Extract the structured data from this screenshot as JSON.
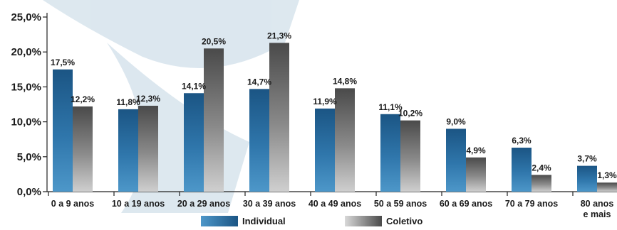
{
  "chart_data": {
    "type": "bar",
    "categories": [
      [
        "0 a 9 anos"
      ],
      [
        "10 a 19 anos"
      ],
      [
        "20 a 29 anos"
      ],
      [
        "30 a 39 anos"
      ],
      [
        "40 a 49 anos"
      ],
      [
        "50 a 59 anos"
      ],
      [
        "60 a 69 anos"
      ],
      [
        "70 a 79 anos"
      ],
      [
        "80 anos",
        "e mais"
      ]
    ],
    "series": [
      {
        "name": "Individual",
        "values": [
          17.5,
          11.8,
          14.1,
          14.7,
          11.9,
          11.1,
          9.0,
          6.3,
          3.7
        ],
        "labels": [
          "17,5%",
          "11,8%",
          "14,1%",
          "14,7%",
          "11,9%",
          "11,1%",
          "9,0%",
          "6,3%",
          "3,7%"
        ],
        "color": "#2a6d9e"
      },
      {
        "name": "Coletivo",
        "values": [
          12.2,
          12.3,
          20.5,
          21.3,
          14.8,
          10.2,
          4.9,
          2.4,
          1.3
        ],
        "labels": [
          "12,2%",
          "12,3%",
          "20,5%",
          "21,3%",
          "14,8%",
          "10,2%",
          "4,9%",
          "2,4%",
          "1,3%"
        ],
        "color": "#6e6e6e"
      }
    ],
    "title": "",
    "xlabel": "",
    "ylabel": "",
    "ylim": [
      0,
      25
    ],
    "yticks": [
      0,
      5,
      10,
      15,
      20,
      25
    ],
    "ytick_labels": [
      "0,0%",
      "5,0%",
      "10,0%",
      "15,0%",
      "20,0%",
      "25,0%"
    ],
    "grid": false,
    "legend_position": "bottom-center",
    "value_labels": true
  }
}
